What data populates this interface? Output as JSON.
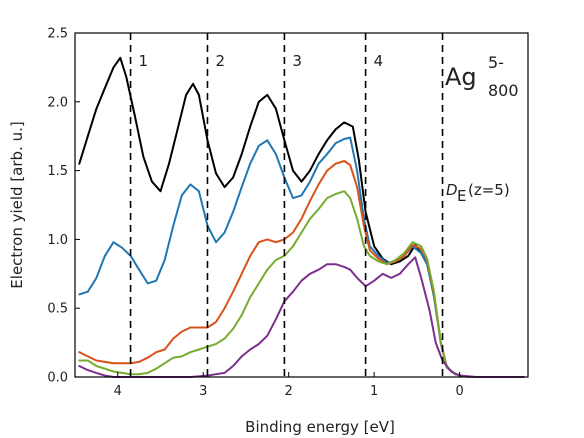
{
  "chart_data": {
    "type": "line",
    "xlabel": "Binding energy [eV]",
    "ylabel": "Electron yield [arb. u.]",
    "xlim": [
      4.5,
      -0.8
    ],
    "ylim": [
      0.0,
      2.5
    ],
    "x_reversed": true,
    "x_ticks": [
      4,
      3,
      2,
      1,
      0
    ],
    "y_ticks": [
      0.0,
      0.5,
      1.0,
      1.5,
      2.0,
      2.5
    ],
    "x_tick_labels": [
      "4",
      "3",
      "2",
      "1",
      "0"
    ],
    "y_tick_labels": [
      "0.0",
      "0.5",
      "1.0",
      "1.5",
      "2.0",
      "2.5"
    ],
    "annotations": {
      "species_base": "Ag",
      "species_sup": "5-",
      "species_sub": "800",
      "de_main": "D",
      "de_sub": "E",
      "de_paren": "(z=5)"
    },
    "vlines": [
      {
        "x": 3.85,
        "label": "1"
      },
      {
        "x": 2.95,
        "label": "2"
      },
      {
        "x": 2.05,
        "label": "3"
      },
      {
        "x": 1.1,
        "label": "4"
      },
      {
        "x": 0.2,
        "label": ""
      }
    ],
    "series": [
      {
        "color": "#000000",
        "points": [
          [
            4.45,
            1.55
          ],
          [
            4.35,
            1.75
          ],
          [
            4.25,
            1.95
          ],
          [
            4.15,
            2.1
          ],
          [
            4.05,
            2.25
          ],
          [
            3.97,
            2.32
          ],
          [
            3.9,
            2.18
          ],
          [
            3.8,
            1.9
          ],
          [
            3.7,
            1.6
          ],
          [
            3.6,
            1.42
          ],
          [
            3.5,
            1.35
          ],
          [
            3.4,
            1.55
          ],
          [
            3.3,
            1.8
          ],
          [
            3.2,
            2.05
          ],
          [
            3.12,
            2.13
          ],
          [
            3.05,
            2.05
          ],
          [
            2.95,
            1.72
          ],
          [
            2.85,
            1.48
          ],
          [
            2.75,
            1.38
          ],
          [
            2.65,
            1.45
          ],
          [
            2.55,
            1.62
          ],
          [
            2.45,
            1.82
          ],
          [
            2.35,
            2.0
          ],
          [
            2.25,
            2.05
          ],
          [
            2.15,
            1.95
          ],
          [
            2.05,
            1.72
          ],
          [
            1.95,
            1.5
          ],
          [
            1.85,
            1.42
          ],
          [
            1.75,
            1.5
          ],
          [
            1.65,
            1.62
          ],
          [
            1.55,
            1.72
          ],
          [
            1.45,
            1.8
          ],
          [
            1.35,
            1.85
          ],
          [
            1.25,
            1.82
          ],
          [
            1.18,
            1.58
          ],
          [
            1.1,
            1.2
          ],
          [
            1.0,
            0.95
          ],
          [
            0.9,
            0.86
          ],
          [
            0.8,
            0.82
          ],
          [
            0.7,
            0.84
          ],
          [
            0.6,
            0.88
          ],
          [
            0.52,
            0.96
          ],
          [
            0.45,
            0.9
          ],
          [
            0.38,
            0.82
          ],
          [
            0.3,
            0.6
          ],
          [
            0.22,
            0.25
          ],
          [
            0.15,
            0.07
          ],
          [
            0.05,
            0.02
          ],
          [
            -0.1,
            0.0
          ],
          [
            -0.4,
            0.0
          ],
          [
            -0.75,
            0.0
          ]
        ]
      },
      {
        "color": "#1f77b4",
        "points": [
          [
            4.45,
            0.6
          ],
          [
            4.35,
            0.62
          ],
          [
            4.25,
            0.72
          ],
          [
            4.15,
            0.88
          ],
          [
            4.05,
            0.98
          ],
          [
            3.95,
            0.94
          ],
          [
            3.85,
            0.88
          ],
          [
            3.75,
            0.78
          ],
          [
            3.65,
            0.68
          ],
          [
            3.55,
            0.7
          ],
          [
            3.45,
            0.85
          ],
          [
            3.35,
            1.1
          ],
          [
            3.25,
            1.32
          ],
          [
            3.15,
            1.4
          ],
          [
            3.05,
            1.35
          ],
          [
            2.95,
            1.1
          ],
          [
            2.85,
            0.98
          ],
          [
            2.75,
            1.05
          ],
          [
            2.65,
            1.2
          ],
          [
            2.55,
            1.38
          ],
          [
            2.45,
            1.55
          ],
          [
            2.35,
            1.68
          ],
          [
            2.25,
            1.72
          ],
          [
            2.15,
            1.62
          ],
          [
            2.05,
            1.45
          ],
          [
            1.95,
            1.3
          ],
          [
            1.85,
            1.32
          ],
          [
            1.75,
            1.42
          ],
          [
            1.65,
            1.55
          ],
          [
            1.55,
            1.62
          ],
          [
            1.45,
            1.7
          ],
          [
            1.35,
            1.73
          ],
          [
            1.28,
            1.74
          ],
          [
            1.2,
            1.5
          ],
          [
            1.12,
            1.15
          ],
          [
            1.05,
            0.95
          ],
          [
            0.95,
            0.88
          ],
          [
            0.85,
            0.83
          ],
          [
            0.75,
            0.84
          ],
          [
            0.65,
            0.88
          ],
          [
            0.55,
            0.95
          ],
          [
            0.45,
            0.9
          ],
          [
            0.38,
            0.82
          ],
          [
            0.3,
            0.58
          ],
          [
            0.22,
            0.25
          ],
          [
            0.15,
            0.07
          ],
          [
            0.05,
            0.02
          ],
          [
            -0.1,
            0.0
          ],
          [
            -0.4,
            0.0
          ],
          [
            -0.75,
            0.0
          ]
        ]
      },
      {
        "color": "#d95319",
        "points": [
          [
            4.45,
            0.18
          ],
          [
            4.35,
            0.15
          ],
          [
            4.25,
            0.12
          ],
          [
            4.15,
            0.11
          ],
          [
            4.05,
            0.1
          ],
          [
            3.95,
            0.1
          ],
          [
            3.85,
            0.1
          ],
          [
            3.75,
            0.11
          ],
          [
            3.65,
            0.14
          ],
          [
            3.55,
            0.18
          ],
          [
            3.45,
            0.2
          ],
          [
            3.35,
            0.28
          ],
          [
            3.25,
            0.33
          ],
          [
            3.15,
            0.36
          ],
          [
            3.05,
            0.36
          ],
          [
            2.95,
            0.36
          ],
          [
            2.85,
            0.4
          ],
          [
            2.75,
            0.5
          ],
          [
            2.65,
            0.62
          ],
          [
            2.55,
            0.75
          ],
          [
            2.45,
            0.88
          ],
          [
            2.35,
            0.98
          ],
          [
            2.25,
            1.0
          ],
          [
            2.15,
            0.98
          ],
          [
            2.05,
            1.0
          ],
          [
            1.95,
            1.05
          ],
          [
            1.85,
            1.15
          ],
          [
            1.75,
            1.28
          ],
          [
            1.65,
            1.4
          ],
          [
            1.55,
            1.5
          ],
          [
            1.45,
            1.55
          ],
          [
            1.35,
            1.57
          ],
          [
            1.28,
            1.54
          ],
          [
            1.2,
            1.38
          ],
          [
            1.12,
            1.1
          ],
          [
            1.05,
            0.92
          ],
          [
            0.95,
            0.86
          ],
          [
            0.85,
            0.82
          ],
          [
            0.75,
            0.84
          ],
          [
            0.65,
            0.88
          ],
          [
            0.55,
            0.96
          ],
          [
            0.45,
            0.93
          ],
          [
            0.38,
            0.85
          ],
          [
            0.3,
            0.6
          ],
          [
            0.22,
            0.25
          ],
          [
            0.15,
            0.07
          ],
          [
            0.05,
            0.02
          ],
          [
            -0.1,
            0.0
          ],
          [
            -0.4,
            0.0
          ],
          [
            -0.75,
            0.0
          ]
        ]
      },
      {
        "color": "#77ac30",
        "points": [
          [
            4.45,
            0.12
          ],
          [
            4.35,
            0.12
          ],
          [
            4.25,
            0.08
          ],
          [
            4.15,
            0.06
          ],
          [
            4.05,
            0.04
          ],
          [
            3.95,
            0.03
          ],
          [
            3.85,
            0.02
          ],
          [
            3.75,
            0.02
          ],
          [
            3.65,
            0.03
          ],
          [
            3.55,
            0.06
          ],
          [
            3.45,
            0.1
          ],
          [
            3.35,
            0.14
          ],
          [
            3.25,
            0.15
          ],
          [
            3.15,
            0.18
          ],
          [
            3.05,
            0.2
          ],
          [
            2.95,
            0.22
          ],
          [
            2.85,
            0.24
          ],
          [
            2.75,
            0.28
          ],
          [
            2.65,
            0.35
          ],
          [
            2.55,
            0.45
          ],
          [
            2.45,
            0.58
          ],
          [
            2.35,
            0.68
          ],
          [
            2.25,
            0.78
          ],
          [
            2.15,
            0.85
          ],
          [
            2.05,
            0.88
          ],
          [
            1.95,
            0.95
          ],
          [
            1.85,
            1.05
          ],
          [
            1.75,
            1.15
          ],
          [
            1.65,
            1.22
          ],
          [
            1.55,
            1.3
          ],
          [
            1.45,
            1.33
          ],
          [
            1.35,
            1.35
          ],
          [
            1.28,
            1.3
          ],
          [
            1.2,
            1.15
          ],
          [
            1.12,
            0.95
          ],
          [
            1.05,
            0.88
          ],
          [
            0.95,
            0.84
          ],
          [
            0.85,
            0.82
          ],
          [
            0.75,
            0.85
          ],
          [
            0.65,
            0.9
          ],
          [
            0.55,
            0.98
          ],
          [
            0.45,
            0.95
          ],
          [
            0.38,
            0.86
          ],
          [
            0.3,
            0.62
          ],
          [
            0.22,
            0.25
          ],
          [
            0.15,
            0.07
          ],
          [
            0.05,
            0.02
          ],
          [
            -0.1,
            0.0
          ],
          [
            -0.4,
            0.0
          ],
          [
            -0.75,
            0.0
          ]
        ]
      },
      {
        "color": "#7e2f8e",
        "points": [
          [
            4.45,
            0.08
          ],
          [
            4.35,
            0.05
          ],
          [
            4.25,
            0.03
          ],
          [
            4.15,
            0.01
          ],
          [
            4.05,
            0.0
          ],
          [
            3.75,
            0.0
          ],
          [
            3.45,
            0.0
          ],
          [
            3.15,
            0.0
          ],
          [
            2.95,
            0.01
          ],
          [
            2.85,
            0.02
          ],
          [
            2.75,
            0.03
          ],
          [
            2.65,
            0.08
          ],
          [
            2.55,
            0.15
          ],
          [
            2.45,
            0.2
          ],
          [
            2.35,
            0.24
          ],
          [
            2.25,
            0.3
          ],
          [
            2.15,
            0.42
          ],
          [
            2.05,
            0.55
          ],
          [
            1.95,
            0.62
          ],
          [
            1.85,
            0.7
          ],
          [
            1.75,
            0.75
          ],
          [
            1.65,
            0.78
          ],
          [
            1.55,
            0.82
          ],
          [
            1.45,
            0.82
          ],
          [
            1.35,
            0.8
          ],
          [
            1.28,
            0.78
          ],
          [
            1.2,
            0.72
          ],
          [
            1.1,
            0.66
          ],
          [
            1.0,
            0.7
          ],
          [
            0.9,
            0.75
          ],
          [
            0.8,
            0.72
          ],
          [
            0.7,
            0.75
          ],
          [
            0.6,
            0.82
          ],
          [
            0.52,
            0.87
          ],
          [
            0.45,
            0.72
          ],
          [
            0.35,
            0.48
          ],
          [
            0.28,
            0.25
          ],
          [
            0.2,
            0.12
          ],
          [
            0.1,
            0.04
          ],
          [
            0.0,
            0.01
          ],
          [
            -0.2,
            0.0
          ],
          [
            -0.5,
            0.0
          ],
          [
            -0.75,
            0.0
          ]
        ]
      }
    ]
  }
}
